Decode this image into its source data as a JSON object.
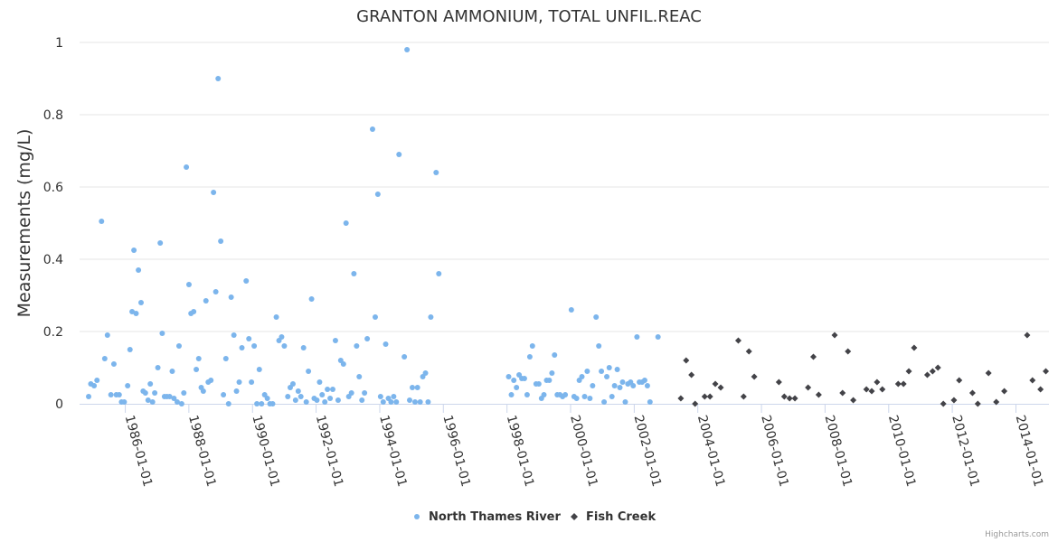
{
  "credits": "Highcharts.com",
  "chart_data": {
    "type": "scatter",
    "title": "GRANTON AMMONIUM, TOTAL UNFIL.REAC",
    "ylabel": "Measurements (mg/L)",
    "xlabel": "",
    "ylim": [
      0,
      1
    ],
    "yticks": [
      "0",
      "0.2",
      "0.4",
      "0.6",
      "0.8",
      "1"
    ],
    "xlim": [
      "1984-07-25",
      "2015-01-15"
    ],
    "xticks": [
      "1986-01-01",
      "1988-01-01",
      "1990-01-01",
      "1992-01-01",
      "1994-01-01",
      "1996-01-01",
      "1998-01-01",
      "2000-01-01",
      "2002-01-01",
      "2004-01-01",
      "2006-01-01",
      "2008-01-01",
      "2010-01-01",
      "2012-01-01",
      "2014-01-01"
    ],
    "grid": true,
    "legend": "bottom-center",
    "series": [
      {
        "name": "North Thames River",
        "color": "#7cb5ec",
        "marker": "circle",
        "points": [
          [
            "1984-11-06",
            0.02
          ],
          [
            "1984-12-01",
            0.055
          ],
          [
            "1985-01-08",
            0.05
          ],
          [
            "1985-02-10",
            0.065
          ],
          [
            "1985-04-03",
            0.505
          ],
          [
            "1985-05-10",
            0.125
          ],
          [
            "1985-06-10",
            0.19
          ],
          [
            "1985-07-20",
            0.025
          ],
          [
            "1985-08-23",
            0.11
          ],
          [
            "1985-09-20",
            0.025
          ],
          [
            "1985-10-23",
            0.025
          ],
          [
            "1985-11-19",
            0.005
          ],
          [
            "1985-12-20",
            0.005
          ],
          [
            "1986-01-28",
            0.05
          ],
          [
            "1986-02-24",
            0.15
          ],
          [
            "1986-03-20",
            0.255
          ],
          [
            "1986-04-10",
            0.425
          ],
          [
            "1986-05-05",
            0.25
          ],
          [
            "1986-06-01",
            0.37
          ],
          [
            "1986-07-01",
            0.28
          ],
          [
            "1986-07-25",
            0.035
          ],
          [
            "1986-08-20",
            0.03
          ],
          [
            "1986-09-20",
            0.01
          ],
          [
            "1986-10-15",
            0.055
          ],
          [
            "1986-11-10",
            0.005
          ],
          [
            "1986-12-05",
            0.03
          ],
          [
            "1987-01-10",
            0.1
          ],
          [
            "1987-02-06",
            0.445
          ],
          [
            "1987-03-01",
            0.195
          ],
          [
            "1987-03-27",
            0.02
          ],
          [
            "1987-04-24",
            0.02
          ],
          [
            "1987-05-25",
            0.02
          ],
          [
            "1987-06-24",
            0.09
          ],
          [
            "1987-07-14",
            0.015
          ],
          [
            "1987-08-20",
            0.005
          ],
          [
            "1987-09-10",
            0.16
          ],
          [
            "1987-10-10",
            0.0
          ],
          [
            "1987-11-04",
            0.03
          ],
          [
            "1987-12-03",
            0.655
          ],
          [
            "1988-01-02",
            0.33
          ],
          [
            "1988-01-25",
            0.25
          ],
          [
            "1988-02-25",
            0.255
          ],
          [
            "1988-03-26",
            0.095
          ],
          [
            "1988-04-23",
            0.125
          ],
          [
            "1988-05-22",
            0.045
          ],
          [
            "1988-06-15",
            0.035
          ],
          [
            "1988-07-15",
            0.285
          ],
          [
            "1988-08-10",
            0.06
          ],
          [
            "1988-09-10",
            0.065
          ],
          [
            "1988-10-10",
            0.585
          ],
          [
            "1988-11-05",
            0.31
          ],
          [
            "1988-12-02",
            0.9
          ],
          [
            "1989-01-01",
            0.45
          ],
          [
            "1989-02-01",
            0.025
          ],
          [
            "1989-03-01",
            0.125
          ],
          [
            "1989-04-01",
            0.0
          ],
          [
            "1989-05-01",
            0.295
          ],
          [
            "1989-06-01",
            0.19
          ],
          [
            "1989-07-01",
            0.035
          ],
          [
            "1989-08-01",
            0.06
          ],
          [
            "1989-09-01",
            0.155
          ],
          [
            "1989-10-20",
            0.34
          ],
          [
            "1989-11-20",
            0.18
          ],
          [
            "1989-12-20",
            0.06
          ],
          [
            "1990-01-20",
            0.16
          ],
          [
            "1990-02-20",
            0.0
          ],
          [
            "1990-03-20",
            0.095
          ],
          [
            "1990-04-15",
            0.0
          ],
          [
            "1990-05-20",
            0.025
          ],
          [
            "1990-06-20",
            0.015
          ],
          [
            "1990-07-20",
            0.0
          ],
          [
            "1990-08-20",
            0.0
          ],
          [
            "1990-10-01",
            0.24
          ],
          [
            "1990-11-01",
            0.175
          ],
          [
            "1990-12-01",
            0.185
          ],
          [
            "1991-01-01",
            0.16
          ],
          [
            "1991-02-10",
            0.02
          ],
          [
            "1991-03-10",
            0.045
          ],
          [
            "1991-04-10",
            0.055
          ],
          [
            "1991-05-10",
            0.01
          ],
          [
            "1991-06-10",
            0.035
          ],
          [
            "1991-07-10",
            0.02
          ],
          [
            "1991-08-10",
            0.155
          ],
          [
            "1991-09-10",
            0.005
          ],
          [
            "1991-10-05",
            0.09
          ],
          [
            "1991-11-10",
            0.29
          ],
          [
            "1991-12-10",
            0.015
          ],
          [
            "1992-01-10",
            0.01
          ],
          [
            "1992-02-10",
            0.06
          ],
          [
            "1992-03-10",
            0.025
          ],
          [
            "1992-04-10",
            0.005
          ],
          [
            "1992-05-10",
            0.04
          ],
          [
            "1992-06-10",
            0.015
          ],
          [
            "1992-07-10",
            0.04
          ],
          [
            "1992-08-10",
            0.175
          ],
          [
            "1992-09-10",
            0.01
          ],
          [
            "1992-10-10",
            0.12
          ],
          [
            "1992-11-10",
            0.11
          ],
          [
            "1992-12-10",
            0.5
          ],
          [
            "1993-01-10",
            0.02
          ],
          [
            "1993-02-10",
            0.03
          ],
          [
            "1993-03-10",
            0.36
          ],
          [
            "1993-04-10",
            0.16
          ],
          [
            "1993-05-10",
            0.075
          ],
          [
            "1993-06-10",
            0.01
          ],
          [
            "1993-07-10",
            0.03
          ],
          [
            "1993-08-10",
            0.18
          ],
          [
            "1993-10-10",
            0.76
          ],
          [
            "1993-11-10",
            0.24
          ],
          [
            "1993-12-10",
            0.58
          ],
          [
            "1994-01-10",
            0.02
          ],
          [
            "1994-02-10",
            0.005
          ],
          [
            "1994-03-10",
            0.165
          ],
          [
            "1994-04-10",
            0.015
          ],
          [
            "1994-05-10",
            0.005
          ],
          [
            "1994-06-10",
            0.02
          ],
          [
            "1994-07-10",
            0.005
          ],
          [
            "1994-08-10",
            0.69
          ],
          [
            "1994-10-10",
            0.13
          ],
          [
            "1994-11-10",
            0.98
          ],
          [
            "1994-12-10",
            0.01
          ],
          [
            "1995-01-10",
            0.045
          ],
          [
            "1995-02-10",
            0.005
          ],
          [
            "1995-03-10",
            0.045
          ],
          [
            "1995-04-10",
            0.005
          ],
          [
            "1995-05-10",
            0.075
          ],
          [
            "1995-06-10",
            0.085
          ],
          [
            "1995-07-10",
            0.005
          ],
          [
            "1995-08-10",
            0.24
          ],
          [
            "1995-10-10",
            0.64
          ],
          [
            "1995-11-10",
            0.36
          ],
          [
            "1998-01-20",
            0.075
          ],
          [
            "1998-02-20",
            0.025
          ],
          [
            "1998-03-20",
            0.065
          ],
          [
            "1998-04-20",
            0.045
          ],
          [
            "1998-05-20",
            0.08
          ],
          [
            "1998-06-20",
            0.07
          ],
          [
            "1998-07-20",
            0.07
          ],
          [
            "1998-08-20",
            0.025
          ],
          [
            "1998-09-20",
            0.13
          ],
          [
            "1998-10-20",
            0.16
          ],
          [
            "1998-12-01",
            0.055
          ],
          [
            "1999-01-01",
            0.055
          ],
          [
            "1999-02-01",
            0.015
          ],
          [
            "1999-03-01",
            0.025
          ],
          [
            "1999-04-01",
            0.065
          ],
          [
            "1999-05-01",
            0.065
          ],
          [
            "1999-06-01",
            0.085
          ],
          [
            "1999-07-01",
            0.135
          ],
          [
            "1999-08-01",
            0.025
          ],
          [
            "1999-09-01",
            0.025
          ],
          [
            "1999-10-01",
            0.02
          ],
          [
            "1999-11-01",
            0.025
          ],
          [
            "2000-01-10",
            0.26
          ],
          [
            "2000-02-10",
            0.02
          ],
          [
            "2000-03-10",
            0.015
          ],
          [
            "2000-04-10",
            0.065
          ],
          [
            "2000-05-10",
            0.075
          ],
          [
            "2000-06-10",
            0.02
          ],
          [
            "2000-07-10",
            0.09
          ],
          [
            "2000-08-10",
            0.015
          ],
          [
            "2000-09-10",
            0.05
          ],
          [
            "2000-10-20",
            0.24
          ],
          [
            "2000-11-20",
            0.16
          ],
          [
            "2000-12-20",
            0.09
          ],
          [
            "2001-01-20",
            0.005
          ],
          [
            "2001-02-20",
            0.075
          ],
          [
            "2001-03-20",
            0.1
          ],
          [
            "2001-04-20",
            0.02
          ],
          [
            "2001-05-20",
            0.05
          ],
          [
            "2001-06-20",
            0.095
          ],
          [
            "2001-07-20",
            0.045
          ],
          [
            "2001-08-20",
            0.06
          ],
          [
            "2001-09-20",
            0.005
          ],
          [
            "2001-10-20",
            0.055
          ],
          [
            "2001-11-20",
            0.06
          ],
          [
            "2001-12-20",
            0.05
          ],
          [
            "2002-02-01",
            0.185
          ],
          [
            "2002-03-01",
            0.06
          ],
          [
            "2002-04-01",
            0.06
          ],
          [
            "2002-05-01",
            0.065
          ],
          [
            "2002-06-01",
            0.05
          ],
          [
            "2002-07-01",
            0.005
          ],
          [
            "2002-10-01",
            0.185
          ]
        ]
      },
      {
        "name": "Fish Creek",
        "color": "#434348",
        "marker": "diamond",
        "points": [
          [
            "2003-06-20",
            0.015
          ],
          [
            "2003-08-20",
            0.12
          ],
          [
            "2003-10-20",
            0.08
          ],
          [
            "2003-12-01",
            0.0
          ],
          [
            "2004-03-20",
            0.02
          ],
          [
            "2004-05-20",
            0.02
          ],
          [
            "2004-07-20",
            0.055
          ],
          [
            "2004-09-20",
            0.045
          ],
          [
            "2005-04-10",
            0.175
          ],
          [
            "2005-06-10",
            0.02
          ],
          [
            "2005-08-10",
            0.145
          ],
          [
            "2005-10-10",
            0.075
          ],
          [
            "2006-07-20",
            0.06
          ],
          [
            "2006-09-20",
            0.02
          ],
          [
            "2006-11-20",
            0.015
          ],
          [
            "2007-01-20",
            0.015
          ],
          [
            "2007-06-20",
            0.045
          ],
          [
            "2007-08-20",
            0.13
          ],
          [
            "2007-10-20",
            0.025
          ],
          [
            "2008-04-20",
            0.19
          ],
          [
            "2008-07-20",
            0.03
          ],
          [
            "2008-09-20",
            0.145
          ],
          [
            "2008-11-20",
            0.01
          ],
          [
            "2009-04-20",
            0.04
          ],
          [
            "2009-06-20",
            0.035
          ],
          [
            "2009-08-20",
            0.06
          ],
          [
            "2009-10-20",
            0.04
          ],
          [
            "2010-04-20",
            0.055
          ],
          [
            "2010-06-20",
            0.055
          ],
          [
            "2010-08-20",
            0.09
          ],
          [
            "2010-10-20",
            0.155
          ],
          [
            "2011-03-20",
            0.08
          ],
          [
            "2011-05-20",
            0.09
          ],
          [
            "2011-07-20",
            0.1
          ],
          [
            "2011-09-20",
            0.0
          ],
          [
            "2012-01-20",
            0.01
          ],
          [
            "2012-03-20",
            0.065
          ],
          [
            "2012-08-20",
            0.03
          ],
          [
            "2012-10-20",
            0.0
          ],
          [
            "2013-02-20",
            0.085
          ],
          [
            "2013-05-20",
            0.005
          ],
          [
            "2013-08-20",
            0.035
          ],
          [
            "2014-05-10",
            0.19
          ],
          [
            "2014-07-10",
            0.065
          ],
          [
            "2014-10-10",
            0.04
          ],
          [
            "2014-12-10",
            0.09
          ]
        ]
      }
    ]
  }
}
